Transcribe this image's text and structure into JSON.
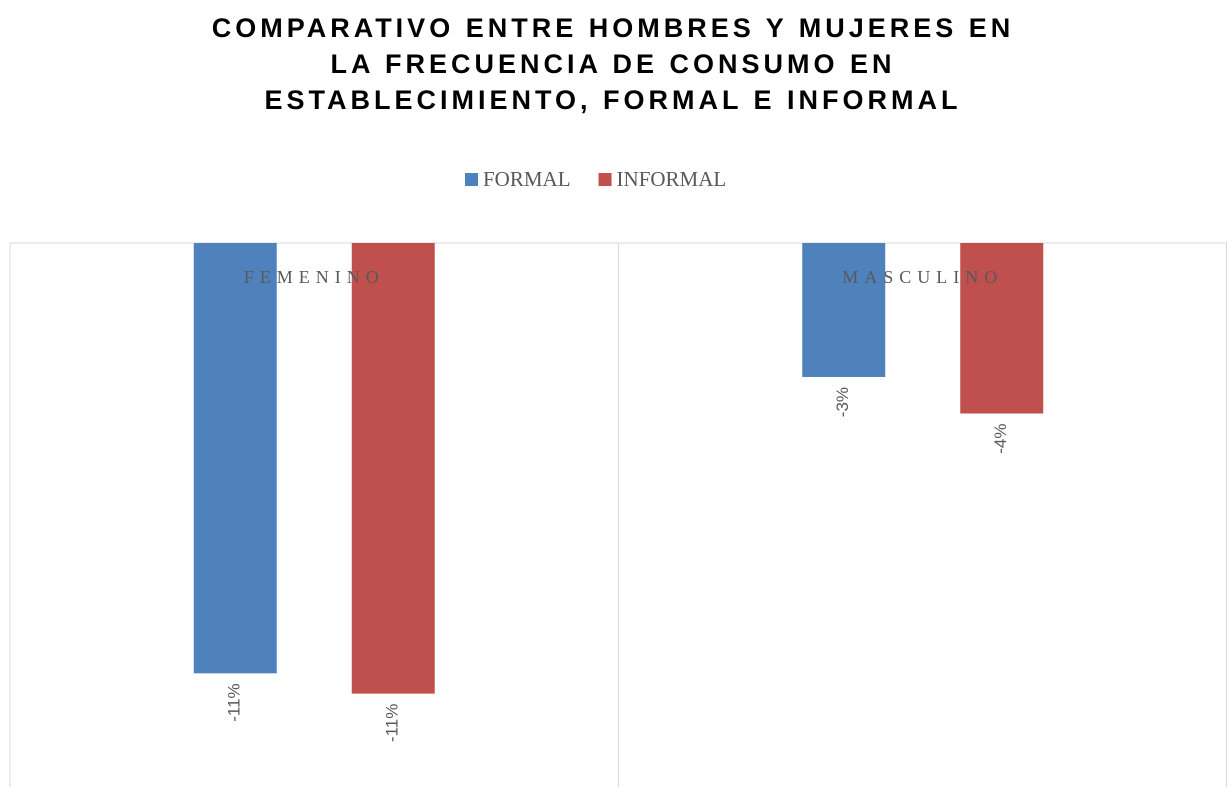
{
  "chart_data": {
    "type": "bar",
    "title": [
      "COMPARATIVO ENTRE HOMBRES Y MUJERES EN",
      "LA FRECUENCIA DE CONSUMO EN",
      "ESTABLECIMIENTO, FORMAL E INFORMAL"
    ],
    "categories": [
      "FEMENINO",
      "MASCULINO"
    ],
    "series": [
      {
        "name": "FORMAL",
        "color": "#4f81bd",
        "values": [
          -10.6,
          -3.3
        ],
        "value_labels": [
          "-11%",
          "-3%"
        ]
      },
      {
        "name": "INFORMAL",
        "color": "#c0504d",
        "values": [
          -11.1,
          -4.2
        ],
        "value_labels": [
          "-11%",
          "-4%"
        ]
      }
    ],
    "ylim": [
      -13.4,
      0
    ],
    "legend": "top"
  }
}
